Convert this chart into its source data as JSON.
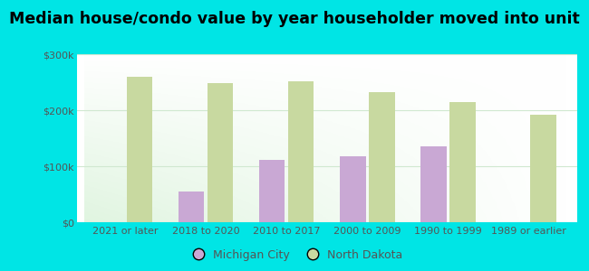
{
  "title": "Median house/condo value by year householder moved into unit",
  "categories": [
    "2021 or later",
    "2018 to 2020",
    "2010 to 2017",
    "2000 to 2009",
    "1990 to 1999",
    "1989 or earlier"
  ],
  "michigan_city": [
    null,
    55000,
    112000,
    118000,
    135000,
    null
  ],
  "north_dakota": [
    260000,
    248000,
    252000,
    233000,
    215000,
    192000
  ],
  "michigan_city_color": "#c9a8d4",
  "north_dakota_color": "#c8d9a0",
  "background_outer": "#00e5e5",
  "ylim": [
    0,
    300000
  ],
  "yticks": [
    0,
    100000,
    200000,
    300000
  ],
  "ytick_labels": [
    "$0",
    "$100k",
    "$200k",
    "$300k"
  ],
  "legend_michigan": "Michigan City",
  "legend_north_dakota": "North Dakota",
  "bar_width": 0.32,
  "title_fontsize": 12.5,
  "tick_fontsize": 8,
  "legend_fontsize": 9,
  "grid_color": "#d0e8d0",
  "label_color": "#555555"
}
